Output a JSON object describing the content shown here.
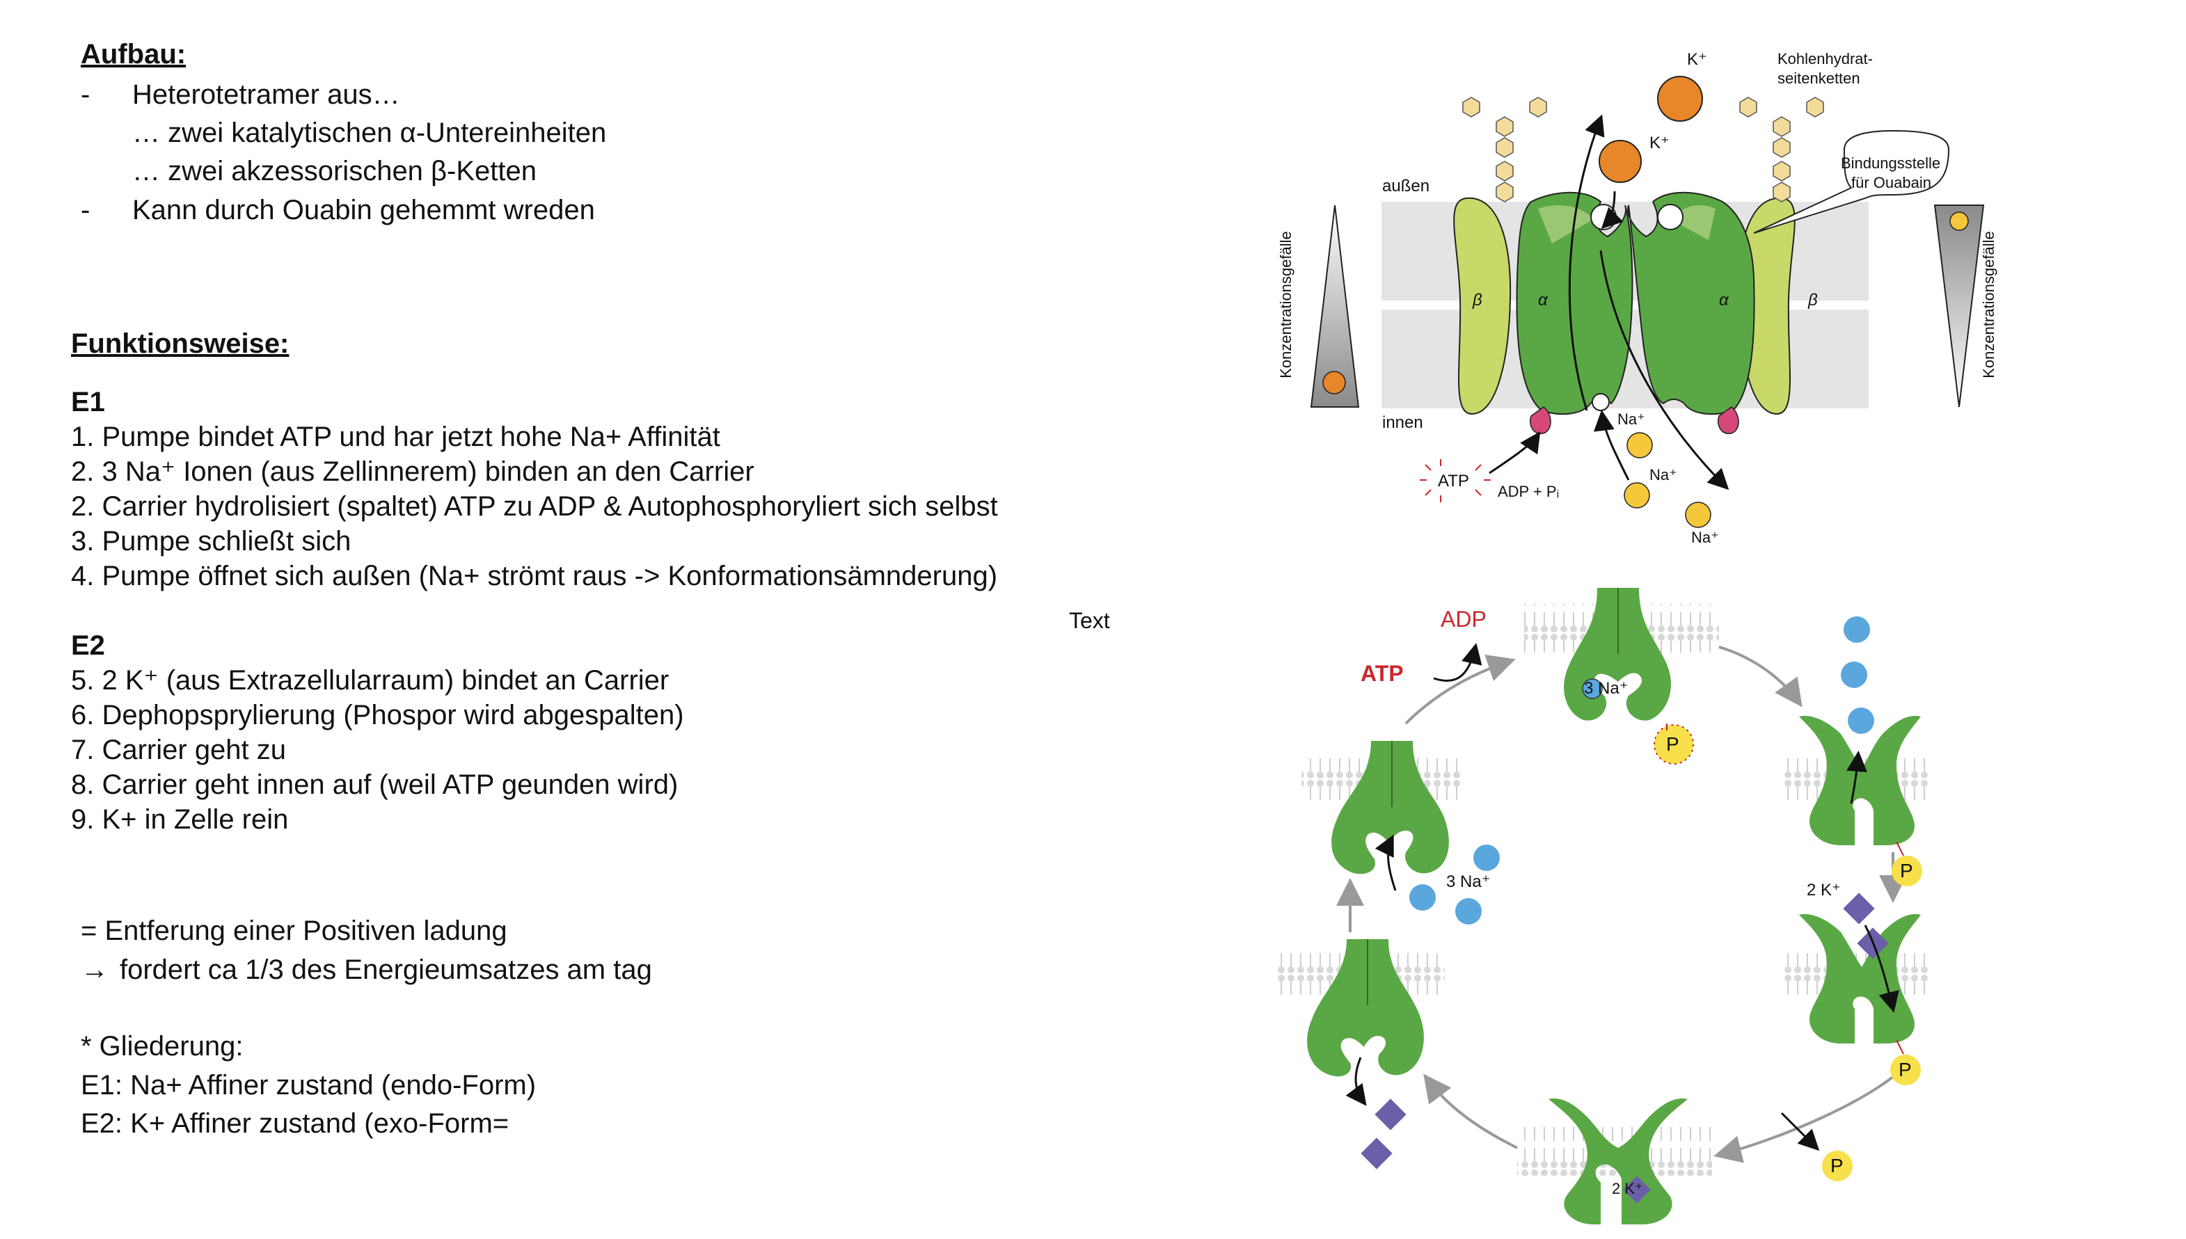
{
  "aufbau": {
    "heading": "Aufbau:",
    "dash1": "-",
    "line1": "Heterotetramer aus…",
    "line2": "… zwei katalytischen α-Untereinheiten",
    "line3": "… zwei akzessorischen β-Ketten",
    "dash2": "-",
    "line4": "Kann durch Ouabin gehemmt wreden"
  },
  "funktion": {
    "heading": "Funktionsweise:",
    "e1": "E1",
    "e1_steps": [
      "1. Pumpe bindet ATP und har jetzt hohe Na+ Affinität",
      "2. 3 Na⁺ Ionen (aus Zellinnerem) binden an den Carrier",
      "2. Carrier hydrolisiert (spaltet) ATP zu ADP & Autophosphoryliert sich selbst",
      "3. Pumpe schließt sich",
      "4. Pumpe öffnet sich außen (Na+ strömt raus -> Konformationsämnderung)"
    ],
    "e2": "E2",
    "e2_steps": [
      "5. 2 K⁺ (aus  Extrazellularraum) bindet an Carrier",
      "6. Dephopsprylierung (Phospor wird abgespalten)",
      "7. Carrier geht zu",
      "8. Carrier geht innen auf (weil ATP geunden wird)",
      "9. K+ in Zelle rein"
    ]
  },
  "summary": {
    "line1": "= Entferung einer Positiven ladung",
    "arrow": "→",
    "line2": "fordert ca  1/3 des Energieumsatzes am tag"
  },
  "gliederung": {
    "heading": "* Gliederung:",
    "e1": "E1: Na+ Affiner zustand (endo-Form)",
    "e2": "E2: K+ Affiner zustand (exo-Form="
  },
  "text_label": "Text",
  "diagram_top": {
    "k_plus_1": "K⁺",
    "k_plus_2": "K⁺",
    "kohlenhydrat": "Kohlenhydrat-",
    "seitenketten": "seitenketten",
    "bindungsstelle": "Bindungsstelle",
    "fuer_ouabain": "für Ouabain",
    "aussen": "außen",
    "innen": "innen",
    "beta": "β",
    "alpha": "α",
    "konzentrationsgefaelle": "Konzentrationsgefälle",
    "na_plus": "Na⁺",
    "atp": "ATP",
    "adp_pi": "ADP + Pᵢ"
  },
  "diagram_cycle": {
    "adp": "ADP",
    "atp": "ATP",
    "na3": "3 Na⁺",
    "p": "P",
    "k2": "2 K⁺"
  },
  "colors": {
    "pump_green": "#5aa845",
    "beta_green": "#c8d96a",
    "membrane": "#e0e0e0",
    "k_orange": "#e8862a",
    "na_yellow": "#f5c73a",
    "na_blue": "#5aa7dd",
    "k_purple": "#6a5fa8",
    "p_yellow": "#f7e04a",
    "atp_red": "#c8282d"
  }
}
